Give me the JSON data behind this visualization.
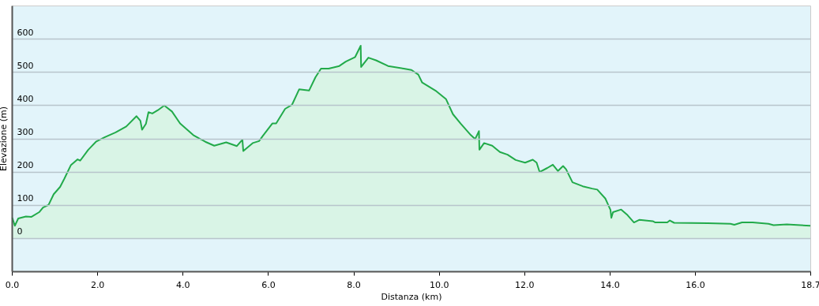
{
  "chart_data": {
    "type": "area",
    "xlabel": "Distanza  (km)",
    "ylabel": "Elevazione (m)",
    "xlim": [
      0,
      18.7
    ],
    "ylim": [
      -100,
      700
    ],
    "xticks": [
      {
        "value": 0,
        "label": "0.0"
      },
      {
        "value": 2,
        "label": "2.0"
      },
      {
        "value": 4,
        "label": "4.0"
      },
      {
        "value": 6,
        "label": "6.0"
      },
      {
        "value": 8,
        "label": "8.0"
      },
      {
        "value": 10,
        "label": "10.0"
      },
      {
        "value": 12,
        "label": "12.0"
      },
      {
        "value": 14,
        "label": "14.0"
      },
      {
        "value": 16,
        "label": "16.0"
      },
      {
        "value": 18.7,
        "label": "18.7"
      }
    ],
    "yticks": [
      0,
      100,
      200,
      300,
      400,
      500,
      600
    ],
    "grid": "y",
    "series": [
      {
        "color": "#22aa4a",
        "x": [
          0.01,
          0.07,
          0.15,
          0.33,
          0.46,
          0.64,
          0.73,
          0.86,
          0.98,
          1.13,
          1.23,
          1.38,
          1.54,
          1.6,
          1.79,
          1.97,
          2.18,
          2.43,
          2.68,
          2.92,
          3.01,
          3.05,
          3.14,
          3.2,
          3.29,
          3.42,
          3.57,
          3.75,
          3.94,
          4.25,
          4.53,
          4.74,
          5.02,
          5.27,
          5.4,
          5.42,
          5.64,
          5.79,
          5.88,
          6.1,
          6.19,
          6.4,
          6.56,
          6.73,
          6.96,
          7.11,
          7.24,
          7.42,
          7.67,
          7.82,
          8.04,
          8.17,
          8.18,
          8.35,
          8.53,
          8.81,
          9.18,
          9.36,
          9.52,
          9.61,
          9.92,
          10.17,
          10.33,
          10.51,
          10.75,
          10.85,
          10.94,
          10.95,
          11.06,
          11.25,
          11.43,
          11.61,
          11.8,
          12.02,
          12.2,
          12.29,
          12.36,
          12.54,
          12.67,
          12.79,
          12.91,
          12.98,
          13.13,
          13.37,
          13.59,
          13.71,
          13.9,
          14.02,
          14.04,
          14.08,
          14.27,
          14.42,
          14.57,
          14.7,
          15.01,
          15.07,
          15.35,
          15.41,
          15.51,
          16.3,
          16.83,
          16.92,
          17.1,
          17.35,
          17.72,
          17.84,
          18.15,
          18.7
        ],
        "values": [
          61,
          37,
          59,
          65,
          64,
          78,
          92,
          100,
          132,
          154,
          179,
          219,
          237,
          233,
          266,
          290,
          304,
          318,
          336,
          367,
          353,
          326,
          344,
          379,
          375,
          385,
          399,
          381,
          345,
          310,
          290,
          278,
          288,
          277,
          296,
          262,
          286,
          292,
          308,
          345,
          345,
          389,
          401,
          448,
          444,
          484,
          510,
          510,
          518,
          531,
          545,
          579,
          515,
          543,
          535,
          518,
          510,
          506,
          492,
          468,
          444,
          418,
          373,
          345,
          310,
          298,
          322,
          266,
          286,
          278,
          259,
          251,
          235,
          227,
          236,
          227,
          199,
          211,
          221,
          202,
          217,
          207,
          168,
          156,
          149,
          146,
          119,
          85,
          61,
          78,
          86,
          69,
          47,
          55,
          51,
          47,
          47,
          53,
          46,
          45,
          43,
          40,
          47,
          47,
          43,
          39,
          41,
          37
        ]
      }
    ]
  }
}
